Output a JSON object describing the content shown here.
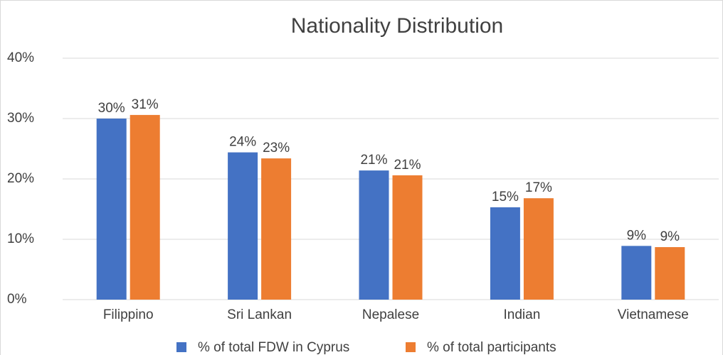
{
  "chart_data": {
    "type": "bar",
    "title": "Nationality Distribution",
    "categories": [
      "Filippino",
      "Sri Lankan",
      "Nepalese",
      "Indian",
      "Vietnamese"
    ],
    "series": [
      {
        "name": "% of total FDW in Cyprus",
        "color": "#4472c4",
        "values": [
          30.0,
          24.4,
          21.4,
          15.3,
          8.9
        ],
        "value_labels": [
          "30%",
          "24%",
          "21%",
          "15%",
          "9%"
        ]
      },
      {
        "name": "% of total participants",
        "color": "#ed7d31",
        "values": [
          30.6,
          23.4,
          20.6,
          16.8,
          8.7
        ],
        "value_labels": [
          "31%",
          "23%",
          "21%",
          "17%",
          "9%"
        ]
      }
    ],
    "ylim": [
      0,
      40
    ],
    "yticks": [
      {
        "value": 0,
        "label": "0%"
      },
      {
        "value": 10,
        "label": "10%"
      },
      {
        "value": 20,
        "label": "20%"
      },
      {
        "value": 30,
        "label": "30%"
      },
      {
        "value": 40,
        "label": "40%"
      }
    ],
    "grid": true,
    "legend": "bottom"
  }
}
